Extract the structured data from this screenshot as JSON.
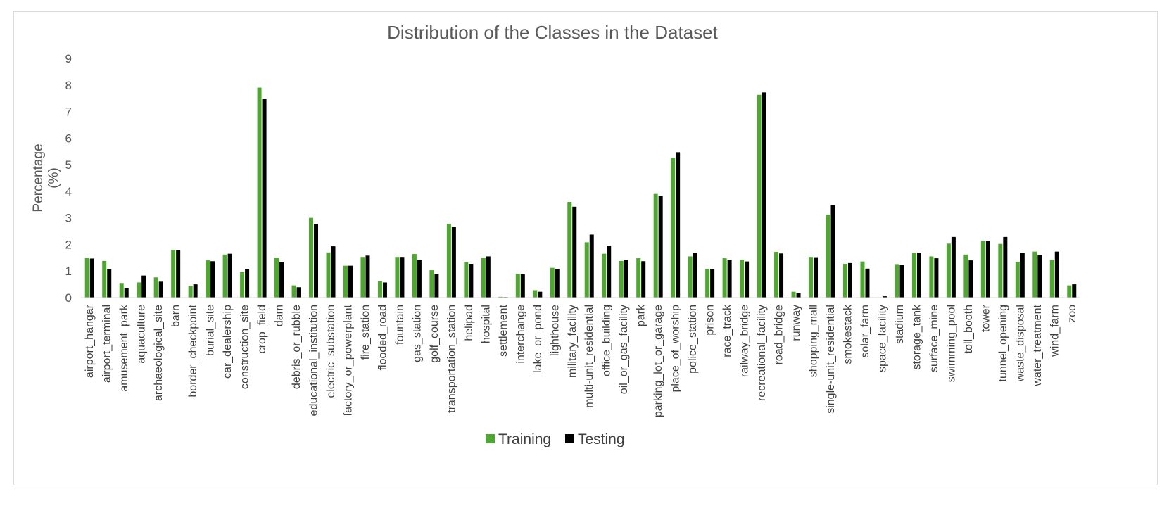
{
  "colors": {
    "training": "#4ea72e",
    "testing": "#000000",
    "axis": "#d9d9d9",
    "text": "#595959"
  },
  "chart_data": {
    "type": "bar",
    "title": "Distribution of the Classes in the Dataset",
    "ylabel_lines": [
      "Percentage",
      "(%)"
    ],
    "xlabel": "",
    "ylim": [
      0,
      9
    ],
    "yticks": [
      "0",
      "1",
      "2",
      "3",
      "4",
      "5",
      "6",
      "7",
      "8",
      "9"
    ],
    "grid": false,
    "legend_position": "bottom",
    "categories": [
      "airport_hangar",
      "airport_terminal",
      "amusement_park",
      "aquaculture",
      "archaeological_site",
      "barn",
      "border_checkpoint",
      "burial_site",
      "car_dealership",
      "construction_site",
      "crop_field",
      "dam",
      "debris_or_rubble",
      "educational_institution",
      "electric_substation",
      "factory_or_powerplant",
      "fire_station",
      "flooded_road",
      "fountain",
      "gas_station",
      "golf_course",
      "transportation_station",
      "helipad",
      "hospital",
      "settlement",
      "interchange",
      "lake_or_pond",
      "lighthouse",
      "military_facility",
      "multi-unit_residential",
      "office_building",
      "oil_or_gas_facility",
      "park",
      "parking_lot_or_garage",
      "place_of_worship",
      "police_station",
      "prison",
      "race_track",
      "railway_bridge",
      "recreational_facility",
      "road_bridge",
      "runway",
      "shopping_mall",
      "single-unit_residential",
      "smokestack",
      "solar_farm",
      "space_facility",
      "stadium",
      "storage_tank",
      "surface_mine",
      "swimming_pool",
      "toll_booth",
      "tower",
      "tunnel_opening",
      "waste_disposal",
      "water_treatment",
      "wind_farm",
      "zoo"
    ],
    "series": [
      {
        "name": "Training",
        "values": [
          1.5,
          1.38,
          0.55,
          0.57,
          0.76,
          1.8,
          0.44,
          1.4,
          1.62,
          0.96,
          7.9,
          1.5,
          0.46,
          3.0,
          1.7,
          1.2,
          1.53,
          0.62,
          1.53,
          1.64,
          1.03,
          2.77,
          1.34,
          1.5,
          0.03,
          0.9,
          0.28,
          1.12,
          3.6,
          2.08,
          1.65,
          1.38,
          1.48,
          3.9,
          5.26,
          1.55,
          1.08,
          1.48,
          1.42,
          7.63,
          1.72,
          0.22,
          1.53,
          3.12,
          1.27,
          1.36,
          0.0,
          1.26,
          1.68,
          1.55,
          2.03,
          1.62,
          2.13,
          2.02,
          1.35,
          1.73,
          1.42,
          0.46
        ]
      },
      {
        "name": "Testing",
        "values": [
          1.47,
          1.07,
          0.37,
          0.83,
          0.6,
          1.78,
          0.5,
          1.37,
          1.65,
          1.08,
          7.48,
          1.35,
          0.39,
          2.77,
          1.93,
          1.2,
          1.58,
          0.57,
          1.53,
          1.43,
          0.88,
          2.65,
          1.27,
          1.55,
          0.02,
          0.88,
          0.22,
          1.08,
          3.42,
          2.37,
          1.95,
          1.42,
          1.37,
          3.83,
          5.47,
          1.68,
          1.08,
          1.43,
          1.36,
          7.72,
          1.66,
          0.18,
          1.52,
          3.48,
          1.3,
          1.09,
          0.05,
          1.23,
          1.68,
          1.48,
          2.28,
          1.4,
          2.12,
          2.28,
          1.68,
          1.6,
          1.73,
          0.5
        ]
      }
    ]
  }
}
